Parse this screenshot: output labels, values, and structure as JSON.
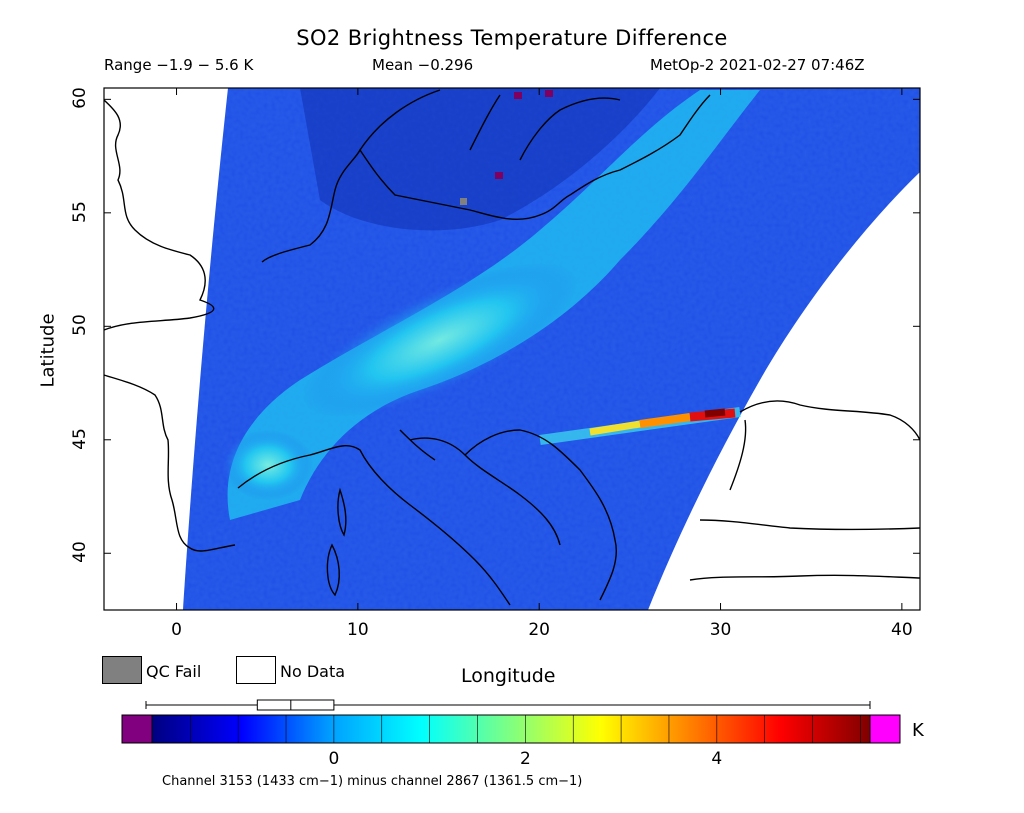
{
  "title": "SO2 Brightness Temperature Difference",
  "range_text": "Range −1.9 − 5.6 K",
  "mean_text": "Mean −0.296",
  "satellite_text": "MetOp-2 2021-02-27 07:46Z",
  "map": {
    "xlabel": "Longitude",
    "ylabel": "Latitude",
    "lon_range": [
      -4,
      41
    ],
    "lat_range": [
      37.5,
      60.5
    ],
    "lon_ticks": [
      "0",
      "10",
      "20",
      "30",
      "40"
    ],
    "lon_tick_values": [
      0,
      10,
      20,
      30,
      40
    ],
    "lat_ticks": [
      "40",
      "45",
      "50",
      "55",
      "60"
    ],
    "lat_tick_values": [
      40,
      45,
      50,
      55,
      60
    ],
    "colors": {
      "swath_base": "#1e4fe6",
      "plume": "#22d8f0",
      "hotspot": "#e01010",
      "coast": "#000000",
      "no_data": "#ffffff",
      "qc_fail": "#808080"
    }
  },
  "legend": {
    "qc_fail_label": "QC Fail",
    "no_data_label": "No Data"
  },
  "colorbar": {
    "unit": "K",
    "ticks": [
      "0",
      "2",
      "4"
    ],
    "tick_values": [
      0,
      2,
      4
    ],
    "range": [
      -1.9,
      5.6
    ],
    "boxplot": {
      "min": -1.9,
      "q1": -0.8,
      "median": -0.45,
      "q3": 0.0,
      "max": 5.6
    },
    "under_color": "#800080",
    "over_color": "#ff00ff",
    "stops": [
      "#000080",
      "#0000ff",
      "#00a0ff",
      "#00ffff",
      "#80ff80",
      "#ffff00",
      "#ff8000",
      "#ff0000",
      "#800000"
    ]
  },
  "footnote": "Channel 3153 (1433 cm−1) minus channel 2867 (1361.5 cm−1)"
}
